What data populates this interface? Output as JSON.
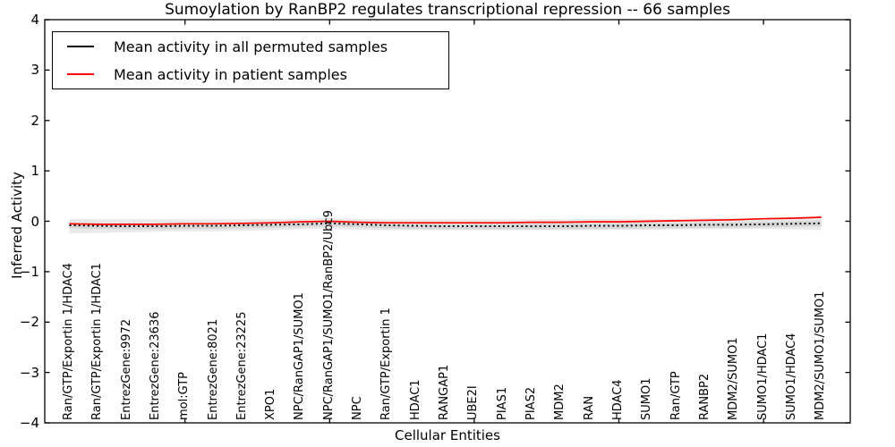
{
  "figure": {
    "title": "Sumoylation by RanBP2 regulates transcriptional repression -- 66 samples",
    "xlabel": "Cellular Entities",
    "ylabel": "Inferred Activity"
  },
  "legend": {
    "entries": [
      {
        "label": "Mean activity in all permuted samples",
        "color": "#000000"
      },
      {
        "label": "Mean activity in patient samples",
        "color": "#ff0000"
      }
    ]
  },
  "axes": {
    "ylim": [
      -4,
      4
    ],
    "ytick_values": [
      4,
      3,
      2,
      1,
      0,
      -1,
      -2,
      -3,
      -4
    ],
    "ytick_labels": [
      "4",
      "3",
      "2",
      "1",
      "0",
      "−1",
      "−2",
      "−3",
      "−4"
    ],
    "xtick_values": [
      5,
      10,
      15,
      20,
      25
    ],
    "xlim": [
      0.15,
      28.0
    ],
    "grid": false
  },
  "chart_data": {
    "type": "line",
    "title": "Sumoylation by RanBP2 regulates transcriptional repression -- 66 samples",
    "xlabel": "Cellular Entities",
    "ylabel": "Inferred Activity",
    "ylim": [
      -4,
      4
    ],
    "legend_position": "upper left",
    "categories": [
      "Ran/GTP/Exportin 1/HDAC4",
      "Ran/GTP/Exportin 1/HDAC1",
      "EntrezGene:9972",
      "EntrezGene:23636",
      "mol:GTP",
      "EntrezGene:8021",
      "EntrezGene:23225",
      "XPO1",
      "NPC/RanGAP1/SUMO1",
      "NPC/RanGAP1/SUMO1/RanBP2/Ubc9",
      "NPC",
      "Ran/GTP/Exportin 1",
      "HDAC1",
      "RANGAP1",
      "UBE2I",
      "PIAS1",
      "PIAS2",
      "MDM2",
      "RAN",
      "HDAC4",
      "SUMO1",
      "Ran/GTP",
      "RANBP2",
      "MDM2/SUMO1",
      "SUMO1/HDAC1",
      "SUMO1/HDAC4",
      "MDM2/SUMO1/SUMO1"
    ],
    "series": [
      {
        "name": "Mean activity in all permuted samples",
        "color": "#000000",
        "style": "dotted",
        "values": [
          -0.08,
          -0.09,
          -0.1,
          -0.1,
          -0.09,
          -0.09,
          -0.08,
          -0.07,
          -0.06,
          -0.04,
          -0.06,
          -0.08,
          -0.09,
          -0.1,
          -0.1,
          -0.1,
          -0.1,
          -0.1,
          -0.09,
          -0.09,
          -0.08,
          -0.08,
          -0.07,
          -0.07,
          -0.06,
          -0.05,
          -0.04
        ]
      },
      {
        "name": "Mean activity in patient samples",
        "color": "#ff0000",
        "style": "solid",
        "values": [
          -0.05,
          -0.06,
          -0.06,
          -0.06,
          -0.05,
          -0.05,
          -0.04,
          -0.03,
          -0.01,
          0.0,
          -0.02,
          -0.03,
          -0.03,
          -0.03,
          -0.03,
          -0.03,
          -0.02,
          -0.02,
          -0.01,
          -0.01,
          0.0,
          0.01,
          0.02,
          0.03,
          0.05,
          0.06,
          0.08
        ]
      }
    ],
    "bands": [
      {
        "name": "permuted-range-outer",
        "color": "#e9e9e9",
        "upper": [
          0.05,
          0.04,
          0.04,
          0.04,
          0.04,
          0.04,
          0.04,
          0.05,
          0.05,
          0.06,
          0.05,
          0.04,
          0.04,
          0.04,
          0.04,
          0.04,
          0.04,
          0.04,
          0.05,
          0.05,
          0.05,
          0.05,
          0.06,
          0.06,
          0.07,
          0.08,
          0.09
        ],
        "lower": [
          -0.24,
          -0.23,
          -0.22,
          -0.21,
          -0.2,
          -0.2,
          -0.19,
          -0.18,
          -0.16,
          -0.15,
          -0.17,
          -0.18,
          -0.18,
          -0.18,
          -0.18,
          -0.18,
          -0.18,
          -0.18,
          -0.18,
          -0.17,
          -0.17,
          -0.16,
          -0.16,
          -0.15,
          -0.15,
          -0.16,
          -0.17
        ]
      },
      {
        "name": "permuted-range-inner",
        "color": "#d6d6d6",
        "upper": [
          -0.03,
          -0.04,
          -0.05,
          -0.05,
          -0.04,
          -0.04,
          -0.03,
          -0.02,
          -0.01,
          0.01,
          -0.01,
          -0.03,
          -0.04,
          -0.05,
          -0.05,
          -0.05,
          -0.05,
          -0.05,
          -0.04,
          -0.04,
          -0.03,
          -0.03,
          -0.02,
          -0.02,
          -0.01,
          0.0,
          0.01
        ],
        "lower": [
          -0.14,
          -0.15,
          -0.16,
          -0.16,
          -0.15,
          -0.15,
          -0.14,
          -0.13,
          -0.12,
          -0.1,
          -0.12,
          -0.14,
          -0.15,
          -0.16,
          -0.16,
          -0.16,
          -0.16,
          -0.16,
          -0.15,
          -0.15,
          -0.14,
          -0.14,
          -0.13,
          -0.13,
          -0.12,
          -0.11,
          -0.1
        ]
      }
    ]
  }
}
